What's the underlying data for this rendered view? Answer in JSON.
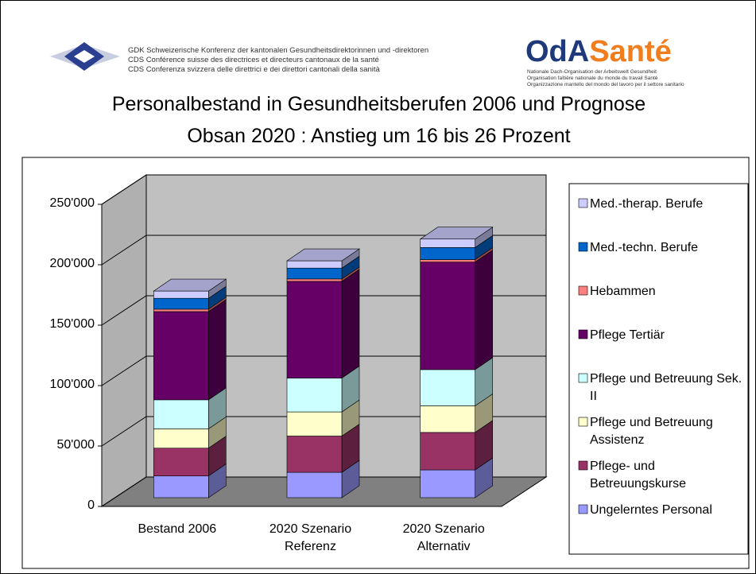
{
  "header": {
    "gdk_lines": [
      "GDK Schweizerische Konferenz der kantonalen Gesundheitsdirektorinnen und -direktoren",
      "CDS Conférence suisse des directrices et directeurs cantonaux de la santé",
      "CDS Conferenza svizzera delle direttrici e dei direttori cantonali della sanità"
    ],
    "oda_logo": [
      "OdA",
      "Santé"
    ],
    "oda_lines": [
      "Nationale Dach-Organisation der Arbeitswelt Gesundheit",
      "Organisation faîtière nationale du monde du travail Santé",
      "Organizzazione mantello del mondo del lavoro per il settore sanitario"
    ]
  },
  "chart_data": {
    "type": "bar3d_stacked",
    "title": [
      "Personalbestand in Gesundheitsberufen 2006 und Prognose",
      "Obsan 2020 : Anstieg um 16 bis 26 Prozent"
    ],
    "categories": [
      "Bestand 2006",
      "2020 Szenario Referenz",
      "2020 Szenario Alternativ"
    ],
    "series": [
      {
        "name": "Ungelerntes Personal",
        "color": "#9999ff",
        "values": [
          18000,
          21000,
          23000
        ]
      },
      {
        "name": "Pflege- und Betreuungskurse",
        "color": "#993366",
        "values": [
          23000,
          30000,
          31000
        ]
      },
      {
        "name": "Pflege und Betreuung Assistenz",
        "color": "#ffffcc",
        "values": [
          16000,
          20000,
          22000
        ]
      },
      {
        "name": "Pflege und Betreuung Sek. II",
        "color": "#ccffff",
        "values": [
          24000,
          28000,
          30000
        ]
      },
      {
        "name": "Pflege Tertiär",
        "color": "#660066",
        "values": [
          73000,
          80000,
          89000
        ]
      },
      {
        "name": "Hebammen",
        "color": "#ff8080",
        "values": [
          2000,
          2000,
          2000
        ]
      },
      {
        "name": "Med.-techn. Berufe",
        "color": "#0066cc",
        "values": [
          9000,
          9000,
          10000
        ]
      },
      {
        "name": "Med.-therap. Berufe",
        "color": "#ccccff",
        "values": [
          6000,
          6000,
          7000
        ]
      }
    ],
    "ylim": [
      0,
      250000
    ],
    "yticks": [
      0,
      {
        "value": 50000,
        "label": "50'000"
      },
      {
        "value": 100000,
        "label": "100'000"
      },
      {
        "value": 150000,
        "label": "150'000"
      },
      {
        "value": 200000,
        "label": "200'000"
      },
      {
        "value": 250000,
        "label": "250'000"
      }
    ],
    "grid": true,
    "legend": "right"
  }
}
